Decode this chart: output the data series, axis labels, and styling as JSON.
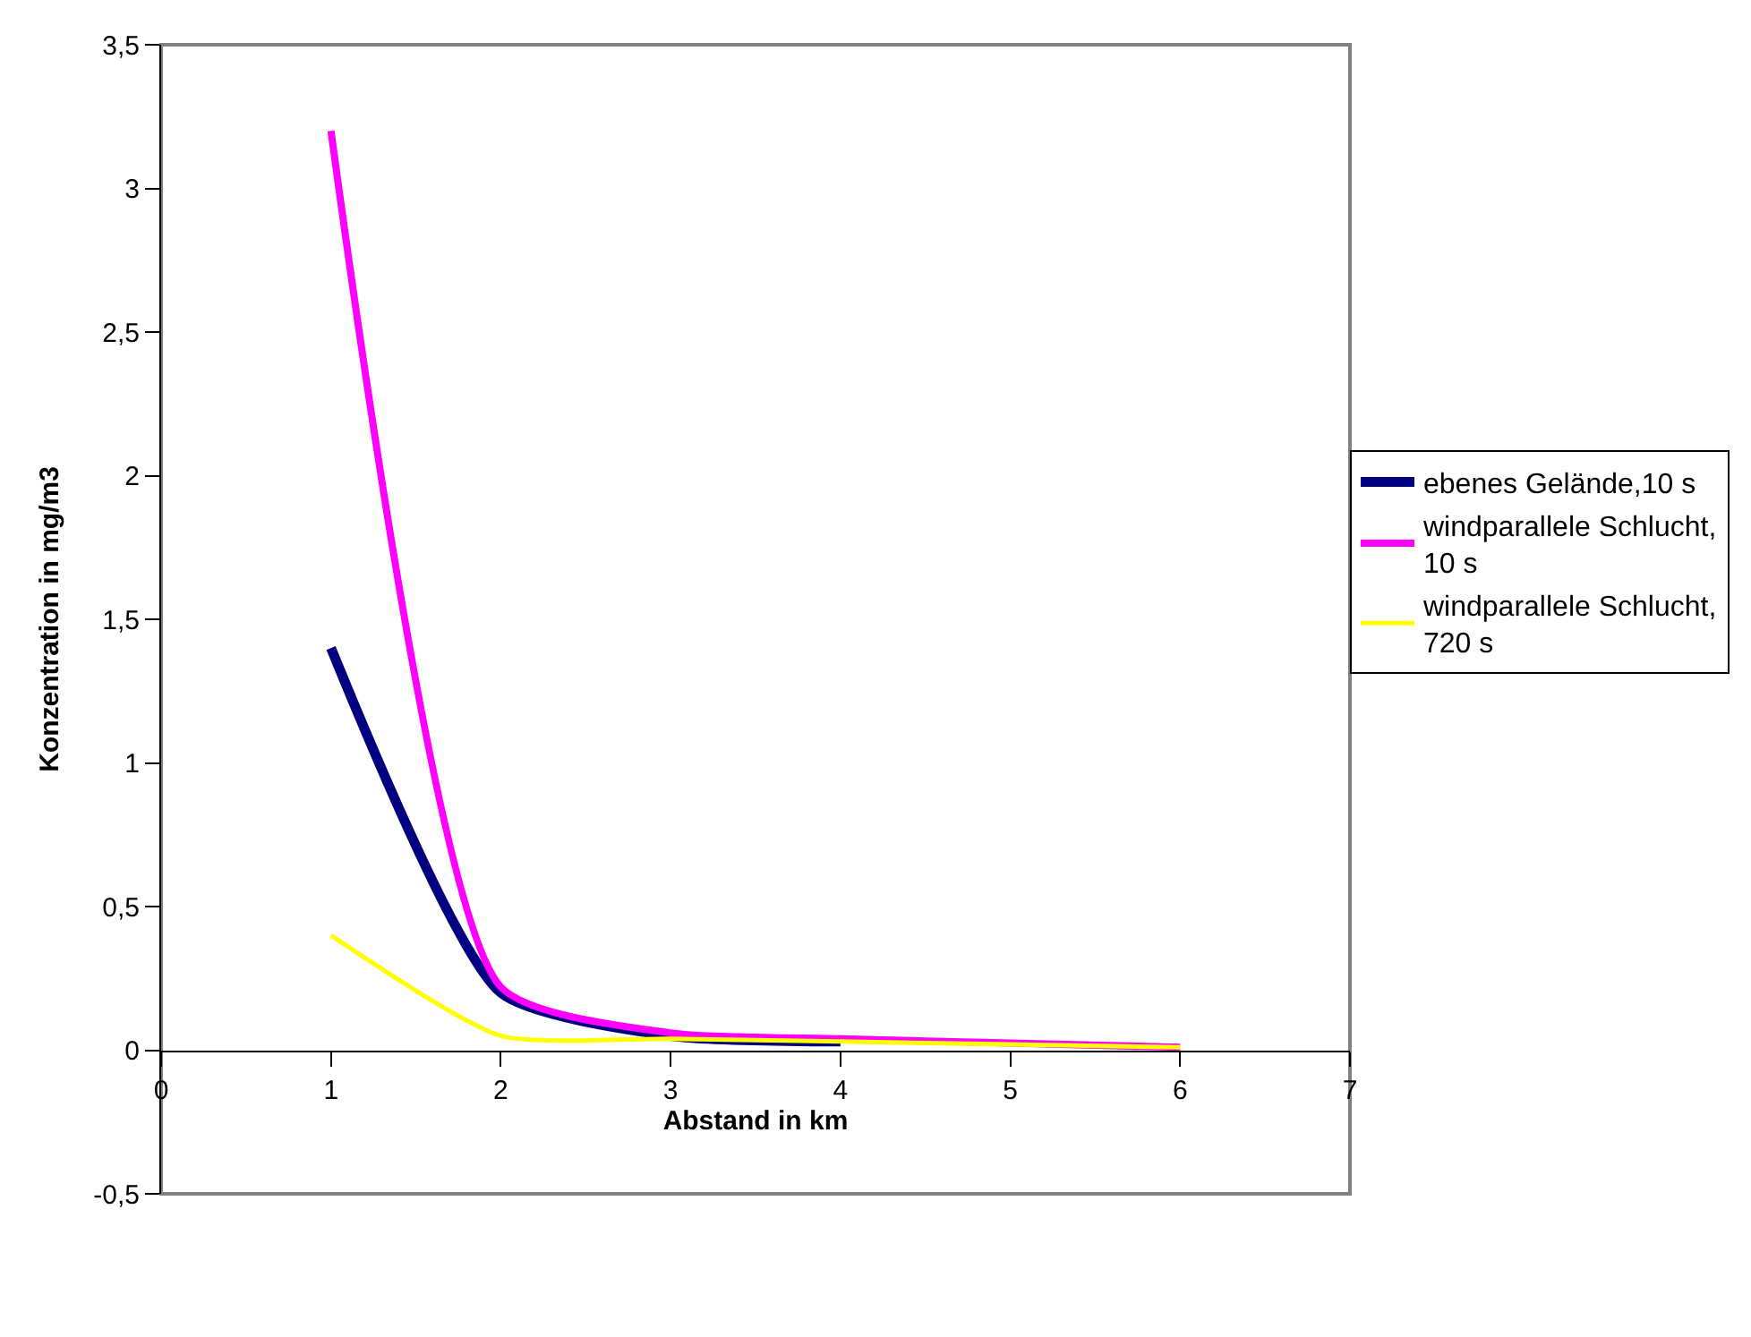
{
  "chart_data": {
    "type": "line",
    "xlabel": "Abstand in km",
    "ylabel": "Konzentration in mg/m3",
    "x": [
      1,
      2,
      3,
      4,
      5,
      6
    ],
    "series": [
      {
        "name": "ebenes Gelände,10 s",
        "color": "#000080",
        "values": [
          1.4,
          0.2,
          0.05,
          0.03,
          null,
          null
        ]
      },
      {
        "name": "windparallele Schlucht, 10 s",
        "color": "#ff00ff",
        "values": [
          3.2,
          0.22,
          0.06,
          0.04,
          0.025,
          0.01
        ]
      },
      {
        "name": "windparallele Schlucht, 720 s",
        "color": "#ffff00",
        "values": [
          0.4,
          0.05,
          0.04,
          0.03,
          0.02,
          0.01
        ]
      }
    ],
    "xlim": [
      0,
      7
    ],
    "xticks": [
      0,
      1,
      2,
      3,
      4,
      5,
      6,
      7
    ],
    "ylim": [
      -0.5,
      3.5
    ],
    "yticks": [
      {
        "value": -0.5,
        "label": "-0,5"
      },
      0,
      {
        "value": 0.5,
        "label": "0,5"
      },
      1,
      {
        "value": 1.5,
        "label": "1,5"
      },
      2,
      {
        "value": 2.5,
        "label": "2,5"
      },
      3,
      {
        "value": 3.5,
        "label": "3,5"
      }
    ],
    "grid": false,
    "legend": "right",
    "marker": "none",
    "line_style": "solid"
  }
}
